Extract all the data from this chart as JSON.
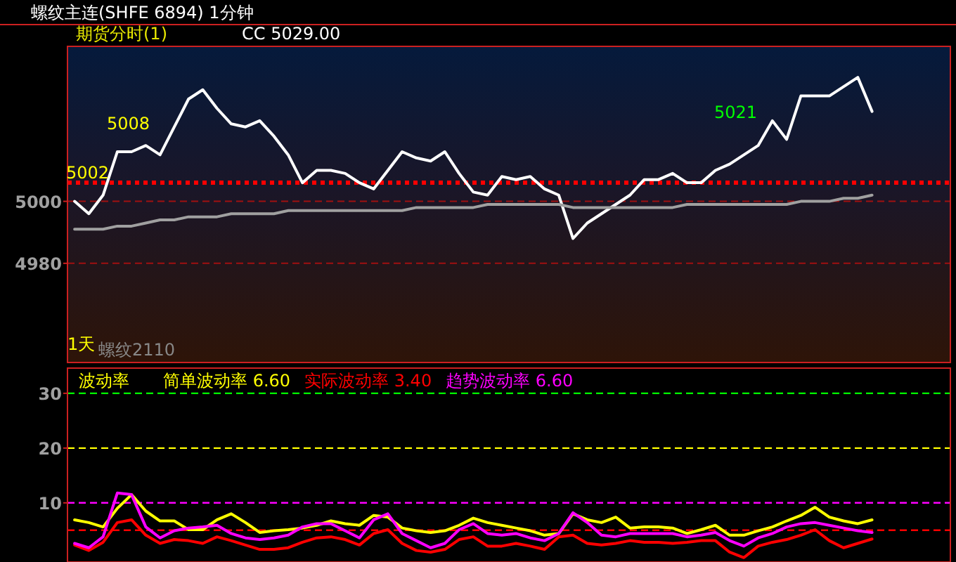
{
  "chart_data": [
    {
      "type": "line",
      "title": "螺纹主连(SHFE 6894)  1分钟",
      "subtitle": "期货分时(1)",
      "annotations": [
        "CC 5029.00",
        "5008",
        "5002",
        "5021",
        "1天",
        "螺纹2110"
      ],
      "categories": [
        null,
        null,
        null,
        null,
        null,
        null,
        null,
        null,
        null,
        null,
        null,
        null,
        null,
        null,
        null,
        null,
        null,
        null,
        null,
        null,
        null,
        null,
        null,
        null,
        null,
        null,
        null,
        null,
        null,
        null,
        null,
        null,
        null,
        null,
        null,
        null,
        null,
        null,
        null,
        null,
        null,
        null,
        null,
        null,
        null,
        null,
        null,
        null,
        null,
        null,
        null,
        null,
        null,
        null,
        null,
        null,
        null,
        null,
        null,
        null,
        null,
        null
      ],
      "series": [
        {
          "color": "#ffffff",
          "values": [
            5000,
            4996,
            5002,
            5016,
            5016,
            5018,
            5015,
            5024,
            5033,
            5036,
            5030,
            5025,
            5024,
            5026,
            5021,
            5015,
            5006,
            5010,
            5010,
            5009,
            5006,
            5004,
            5010,
            5016,
            5014,
            5013,
            5016,
            5009,
            5003,
            5002,
            5008,
            5007,
            5008,
            5004,
            5002,
            4988,
            4993,
            4996,
            4999,
            5002,
            5007,
            5007,
            5009,
            5006,
            5006,
            5010,
            5012,
            5015,
            5018,
            5026,
            5020,
            5034,
            5034,
            5034,
            5037,
            5040,
            5029,
            null,
            null,
            null,
            null,
            null
          ]
        },
        {
          "color": "#a0a0a0",
          "values": [
            4991,
            4991,
            4991,
            4992,
            4992,
            4993,
            4994,
            4994,
            4995,
            4995,
            4995,
            4996,
            4996,
            4996,
            4996,
            4997,
            4997,
            4997,
            4997,
            4997,
            4997,
            4997,
            4997,
            4997,
            4998,
            4998,
            4998,
            4998,
            4998,
            4999,
            4999,
            4999,
            4999,
            4999,
            4999,
            4998,
            4998,
            4998,
            4998,
            4998,
            4998,
            4998,
            4998,
            4999,
            4999,
            4999,
            4999,
            4999,
            4999,
            4999,
            4999,
            5000,
            5000,
            5000,
            5001,
            5001,
            5002,
            null,
            null,
            null,
            null,
            null
          ]
        }
      ],
      "ylim": [
        4948,
        5050
      ],
      "yticks": [
        4980,
        5000
      ],
      "grid": "y",
      "tick_labels": "y",
      "line_style": "solid",
      "marker": "none",
      "ref_lines": [
        {
          "axis": "y",
          "value": 5006,
          "color": "#ff0000",
          "line_style": "dotted"
        }
      ]
    },
    {
      "type": "line",
      "title": "波动率",
      "categories": [
        null,
        null,
        null,
        null,
        null,
        null,
        null,
        null,
        null,
        null,
        null,
        null,
        null,
        null,
        null,
        null,
        null,
        null,
        null,
        null,
        null,
        null,
        null,
        null,
        null,
        null,
        null,
        null,
        null,
        null,
        null,
        null,
        null,
        null,
        null,
        null,
        null,
        null,
        null,
        null,
        null,
        null,
        null,
        null,
        null,
        null,
        null,
        null,
        null,
        null,
        null,
        null,
        null,
        null,
        null,
        null,
        null,
        null,
        null,
        null,
        null,
        null
      ],
      "series": [
        {
          "name": "简单波动率 6.60",
          "color": "#ffff00",
          "values": [
            6.9,
            6.4,
            5.6,
            9.0,
            11.5,
            8.5,
            6.7,
            6.7,
            5.1,
            5.1,
            6.9,
            8.0,
            6.4,
            4.6,
            4.9,
            5.1,
            5.4,
            5.9,
            6.7,
            6.2,
            5.9,
            7.7,
            7.4,
            5.4,
            4.9,
            4.6,
            4.9,
            5.9,
            7.2,
            6.4,
            5.9,
            5.4,
            4.9,
            4.1,
            4.4,
            8.0,
            6.9,
            6.4,
            7.4,
            5.4,
            5.6,
            5.6,
            5.4,
            4.4,
            5.1,
            5.9,
            4.1,
            4.1,
            4.9,
            5.6,
            6.7,
            7.7,
            9.2,
            7.4,
            6.7,
            6.2,
            6.9,
            null,
            null,
            null,
            null,
            null
          ]
        },
        {
          "name": "实际波动率 3.40",
          "color": "#ff0000",
          "values": [
            2.3,
            1.3,
            2.8,
            6.4,
            6.9,
            4.1,
            2.6,
            3.3,
            3.1,
            2.6,
            3.8,
            3.1,
            2.3,
            1.5,
            1.5,
            1.8,
            2.8,
            3.6,
            3.8,
            3.3,
            2.3,
            4.4,
            5.1,
            2.6,
            1.3,
            1.0,
            1.5,
            3.3,
            3.8,
            2.1,
            2.1,
            2.6,
            2.1,
            1.5,
            3.8,
            4.1,
            2.6,
            2.3,
            2.6,
            3.1,
            2.8,
            2.8,
            2.6,
            2.8,
            3.1,
            3.1,
            1.0,
            0.0,
            2.1,
            2.8,
            3.3,
            4.1,
            5.1,
            3.1,
            1.8,
            2.6,
            3.4,
            null,
            null,
            null,
            null,
            null
          ]
        },
        {
          "name": "趋势波动率 6.60",
          "color": "#ff00ff",
          "values": [
            2.6,
            1.8,
            3.8,
            11.8,
            11.5,
            5.6,
            3.6,
            4.9,
            5.4,
            5.6,
            5.9,
            4.4,
            3.6,
            3.3,
            3.6,
            4.1,
            5.6,
            6.2,
            6.2,
            4.9,
            3.6,
            6.9,
            8.0,
            4.4,
            3.1,
            1.8,
            2.6,
            5.1,
            6.2,
            4.4,
            4.1,
            4.4,
            3.6,
            3.1,
            4.4,
            8.2,
            6.4,
            4.1,
            3.8,
            4.4,
            4.4,
            4.4,
            4.4,
            3.8,
            4.1,
            4.6,
            3.1,
            2.1,
            3.6,
            4.4,
            5.6,
            6.2,
            6.4,
            5.9,
            5.4,
            4.9,
            4.6,
            null,
            null,
            null,
            null,
            null
          ]
        }
      ],
      "ylim": [
        -0.8,
        34.6
      ],
      "yticks": [
        10,
        20,
        30
      ],
      "grid": false,
      "tick_labels": "y",
      "legend": "top left",
      "line_style": "solid",
      "marker": "none",
      "ref_lines": [
        {
          "axis": "y",
          "value": 30,
          "color": "#00ff00",
          "line_style": "dashed"
        },
        {
          "axis": "y",
          "value": 20,
          "color": "#ffff00",
          "line_style": "dashed"
        },
        {
          "axis": "y",
          "value": 10,
          "color": "#ff00ff",
          "line_style": "dashed"
        },
        {
          "axis": "y",
          "value": 5,
          "color": "#ff0000",
          "line_style": "dashed"
        }
      ]
    }
  ]
}
